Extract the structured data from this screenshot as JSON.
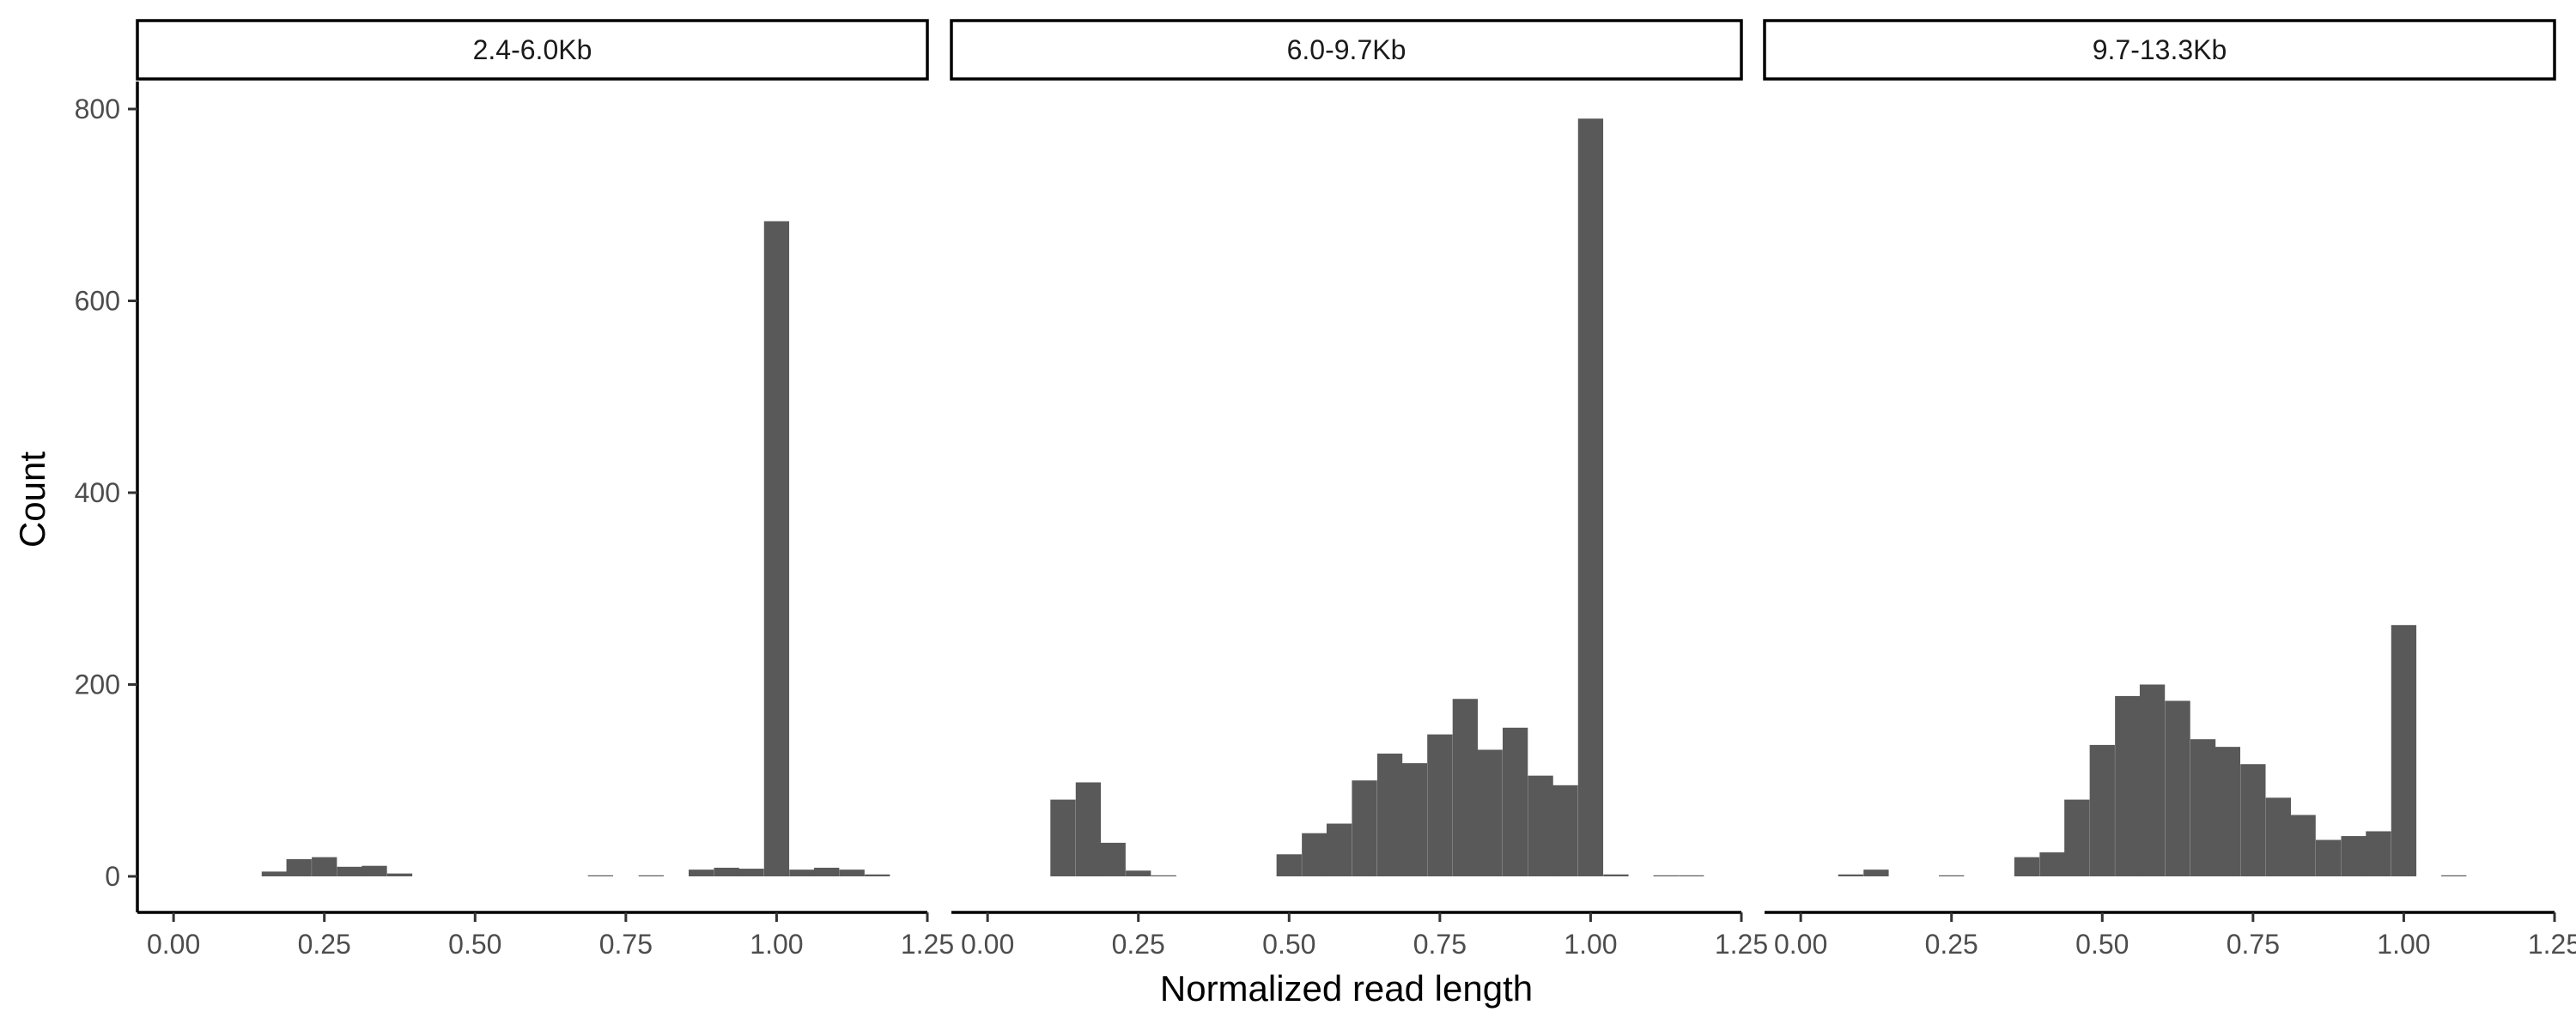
{
  "chart_data": {
    "type": "bar",
    "subtype": "faceted-histogram",
    "xlabel": "Normalized read length",
    "ylabel": "Count",
    "xlim": [
      -0.06,
      1.25
    ],
    "ylim": [
      0,
      820
    ],
    "x_ticks": [
      "0.00",
      "0.25",
      "0.50",
      "0.75",
      "1.00",
      "1.25"
    ],
    "y_ticks": [
      "0",
      "200",
      "400",
      "600",
      "800"
    ],
    "bin_width": 0.0417,
    "bar_color": "#595959",
    "grid": false,
    "legend": "none",
    "panels": [
      {
        "label": "2.4-6.0Kb",
        "bins": [
          {
            "x": 0.167,
            "count": 5
          },
          {
            "x": 0.208,
            "count": 18
          },
          {
            "x": 0.25,
            "count": 20
          },
          {
            "x": 0.292,
            "count": 10
          },
          {
            "x": 0.333,
            "count": 11
          },
          {
            "x": 0.375,
            "count": 3
          },
          {
            "x": 0.708,
            "count": 1
          },
          {
            "x": 0.792,
            "count": 1
          },
          {
            "x": 0.875,
            "count": 7
          },
          {
            "x": 0.917,
            "count": 9
          },
          {
            "x": 0.958,
            "count": 8
          },
          {
            "x": 1.0,
            "count": 683
          },
          {
            "x": 1.042,
            "count": 7
          },
          {
            "x": 1.083,
            "count": 9
          },
          {
            "x": 1.125,
            "count": 7
          },
          {
            "x": 1.167,
            "count": 2
          }
        ]
      },
      {
        "label": "6.0-9.7Kb",
        "bins": [
          {
            "x": 0.125,
            "count": 80
          },
          {
            "x": 0.167,
            "count": 98
          },
          {
            "x": 0.208,
            "count": 35
          },
          {
            "x": 0.25,
            "count": 6
          },
          {
            "x": 0.292,
            "count": 1
          },
          {
            "x": 0.5,
            "count": 23
          },
          {
            "x": 0.542,
            "count": 45
          },
          {
            "x": 0.583,
            "count": 55
          },
          {
            "x": 0.625,
            "count": 100
          },
          {
            "x": 0.667,
            "count": 128
          },
          {
            "x": 0.708,
            "count": 118
          },
          {
            "x": 0.75,
            "count": 148
          },
          {
            "x": 0.792,
            "count": 185
          },
          {
            "x": 0.833,
            "count": 132
          },
          {
            "x": 0.875,
            "count": 155
          },
          {
            "x": 0.917,
            "count": 105
          },
          {
            "x": 0.958,
            "count": 95
          },
          {
            "x": 1.0,
            "count": 790
          },
          {
            "x": 1.042,
            "count": 2
          },
          {
            "x": 1.125,
            "count": 1
          },
          {
            "x": 1.167,
            "count": 1
          }
        ]
      },
      {
        "label": "9.7-13.3Kb",
        "bins": [
          {
            "x": 0.083,
            "count": 2
          },
          {
            "x": 0.125,
            "count": 7
          },
          {
            "x": 0.25,
            "count": 1
          },
          {
            "x": 0.375,
            "count": 20
          },
          {
            "x": 0.417,
            "count": 25
          },
          {
            "x": 0.458,
            "count": 80
          },
          {
            "x": 0.5,
            "count": 137
          },
          {
            "x": 0.542,
            "count": 188
          },
          {
            "x": 0.583,
            "count": 200
          },
          {
            "x": 0.625,
            "count": 183
          },
          {
            "x": 0.667,
            "count": 143
          },
          {
            "x": 0.708,
            "count": 135
          },
          {
            "x": 0.75,
            "count": 117
          },
          {
            "x": 0.792,
            "count": 82
          },
          {
            "x": 0.833,
            "count": 64
          },
          {
            "x": 0.875,
            "count": 38
          },
          {
            "x": 0.917,
            "count": 42
          },
          {
            "x": 0.958,
            "count": 47
          },
          {
            "x": 1.0,
            "count": 262
          },
          {
            "x": 1.083,
            "count": 1
          }
        ]
      }
    ]
  }
}
